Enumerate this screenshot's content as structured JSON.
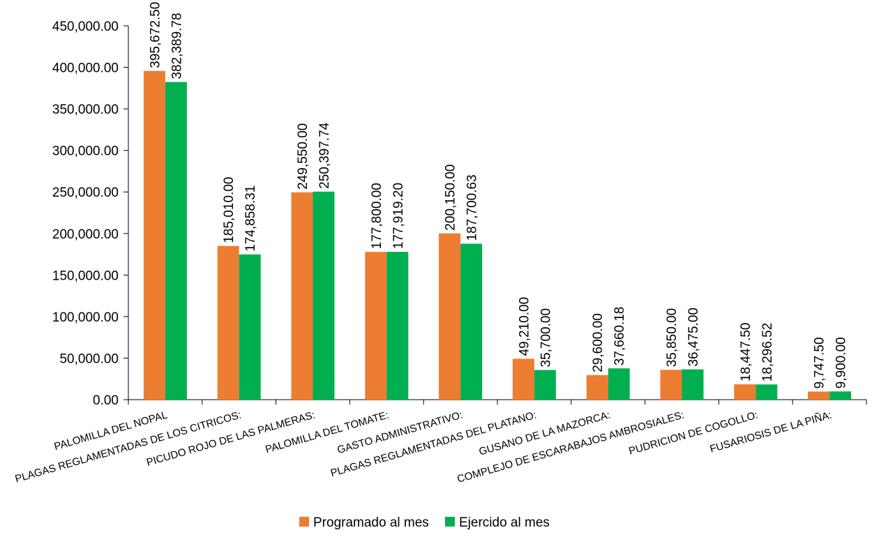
{
  "chart_data": {
    "type": "bar",
    "categories": [
      "PALOMILLA DEL NOPAL",
      "PLAGAS REGLAMENTADAS DE LOS CITRICOS:",
      "PICUDO ROJO DE LAS PALMERAS:",
      "PALOMILLA DEL TOMATE:",
      "GASTO ADMINISTRATIVO:",
      "PLAGAS REGLAMENTADAS DEL PLATANO:",
      "GUSANO DE LA MAZORCA:",
      "COMPLEJO DE ESCARABAJOS AMBROSIALES:",
      "PUDRICION DE COGOLLO:",
      "FUSARIOSIS DE LA PIÑA:"
    ],
    "series": [
      {
        "name": "Programado al mes",
        "color": "#ED7D31",
        "values": [
          395672.5,
          185010.0,
          249550.0,
          177800.0,
          200150.0,
          49210.0,
          29600.0,
          35850.0,
          18447.5,
          9747.5
        ],
        "labels": [
          "395,672.50",
          "185,010.00",
          "249,550.00",
          "177,800.00",
          "200,150.00",
          "49,210.00",
          "29,600.00",
          "35,850.00",
          "18,447.50",
          "9,747.50"
        ]
      },
      {
        "name": "Ejercido al mes",
        "color": "#00B050",
        "values": [
          382389.78,
          174858.31,
          250397.74,
          177919.2,
          187700.63,
          35700.0,
          37660.18,
          36475.0,
          18296.52,
          9900.0
        ],
        "labels": [
          "382,389.78",
          "174,858.31",
          "250,397.74",
          "177,919.20",
          "187,700.63",
          "35,700.00",
          "37,660.18",
          "36,475.00",
          "18,296.52",
          "9,900.00"
        ]
      }
    ],
    "ylim": [
      0,
      450000
    ],
    "yticks": [
      0,
      50000,
      100000,
      150000,
      200000,
      250000,
      300000,
      350000,
      400000,
      450000
    ],
    "ytick_labels": [
      "0.00",
      "50,000.00",
      "100,000.00",
      "150,000.00",
      "200,000.00",
      "250,000.00",
      "300,000.00",
      "350,000.00",
      "400,000.00",
      "450,000.00"
    ],
    "grid": false,
    "legend_position": "bottom"
  }
}
